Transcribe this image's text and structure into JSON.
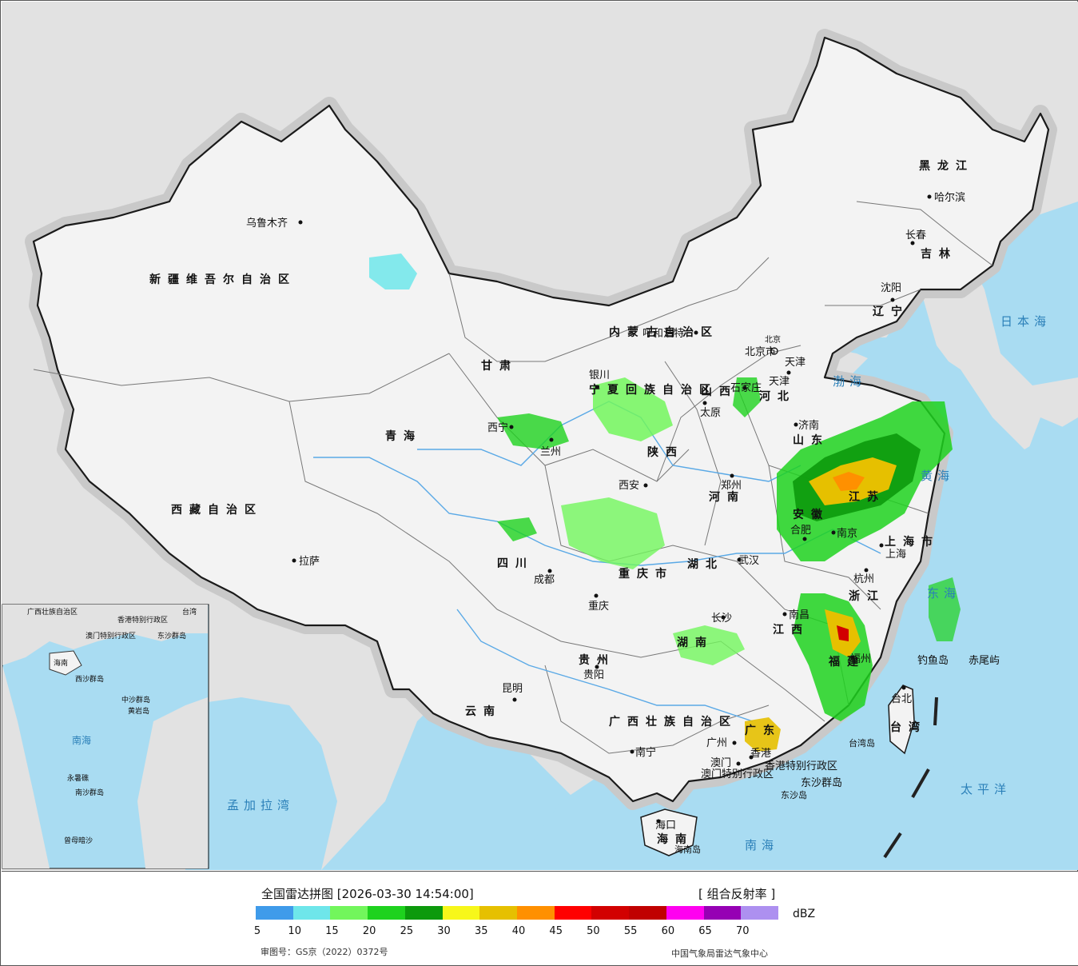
{
  "map": {
    "colors": {
      "sea": "#a9dcf2",
      "land_china": "#f3f3f3",
      "land_other": "#e2e2e2",
      "border": "#1a1a1a",
      "river": "#5aa9e6"
    },
    "provinces": [
      "新疆维吾尔自治区",
      "西藏自治区",
      "青海",
      "甘肃",
      "内蒙古自治区",
      "黑龙江",
      "吉林",
      "辽宁",
      "河北",
      "山西",
      "陕西",
      "宁夏回族自治区",
      "四川",
      "重庆市",
      "云南",
      "贵州",
      "广西壮族自治区",
      "广东",
      "海南",
      "湖南",
      "湖北",
      "河南",
      "山东",
      "江苏",
      "安徽",
      "浙江",
      "江西",
      "福建",
      "台湾",
      "上海市",
      "北京市",
      "天津",
      "香港特别行政区",
      "澳门特别行政区"
    ],
    "cities": [
      "乌鲁木齐",
      "拉萨",
      "西宁",
      "兰州",
      "银川",
      "呼和浩特",
      "哈尔滨",
      "长春",
      "沈阳",
      "北京",
      "天津",
      "石家庄",
      "太原",
      "济南",
      "郑州",
      "西安",
      "成都",
      "重庆",
      "武汉",
      "合肥",
      "南京",
      "上海",
      "杭州",
      "南昌",
      "长沙",
      "贵阳",
      "昆明",
      "南宁",
      "广州",
      "香港",
      "澳门",
      "福州",
      "台北",
      "海口"
    ],
    "seas": [
      "日本海",
      "渤海",
      "黄海",
      "东海",
      "太平洋",
      "南海",
      "孟加拉湾"
    ],
    "islands": [
      "钓鱼岛",
      "赤尾屿",
      "台湾岛",
      "东沙群岛",
      "东沙岛",
      "海南岛"
    ],
    "inset_labels": [
      "广西壮族自治区",
      "香港特别行政区",
      "澳门特别行政区",
      "东沙群岛",
      "海南",
      "西沙群岛",
      "中沙群岛",
      "黄岩岛",
      "南海",
      "南沙群岛",
      "永暑礁",
      "曾母暗沙",
      "台湾"
    ]
  },
  "legend": {
    "title": "全国雷达拼图 [2026-03-30 14:54:00]",
    "product": "[ 组合反射率 ]",
    "unit": "dBZ",
    "colors": [
      "#3f9bea",
      "#6ee6ea",
      "#72f65c",
      "#1ed21e",
      "#0c9a0c",
      "#f7f71a",
      "#e6c000",
      "#ff9000",
      "#ff0000",
      "#d20000",
      "#c00000",
      "#ff00f0",
      "#9600b4",
      "#ad90f0"
    ],
    "ticks": [
      "5",
      "10",
      "15",
      "20",
      "25",
      "30",
      "35",
      "40",
      "45",
      "50",
      "55",
      "60",
      "65",
      "70"
    ],
    "review_no": "审图号：GS京（2022）0372号",
    "source": "中国气象局雷达气象中心"
  }
}
